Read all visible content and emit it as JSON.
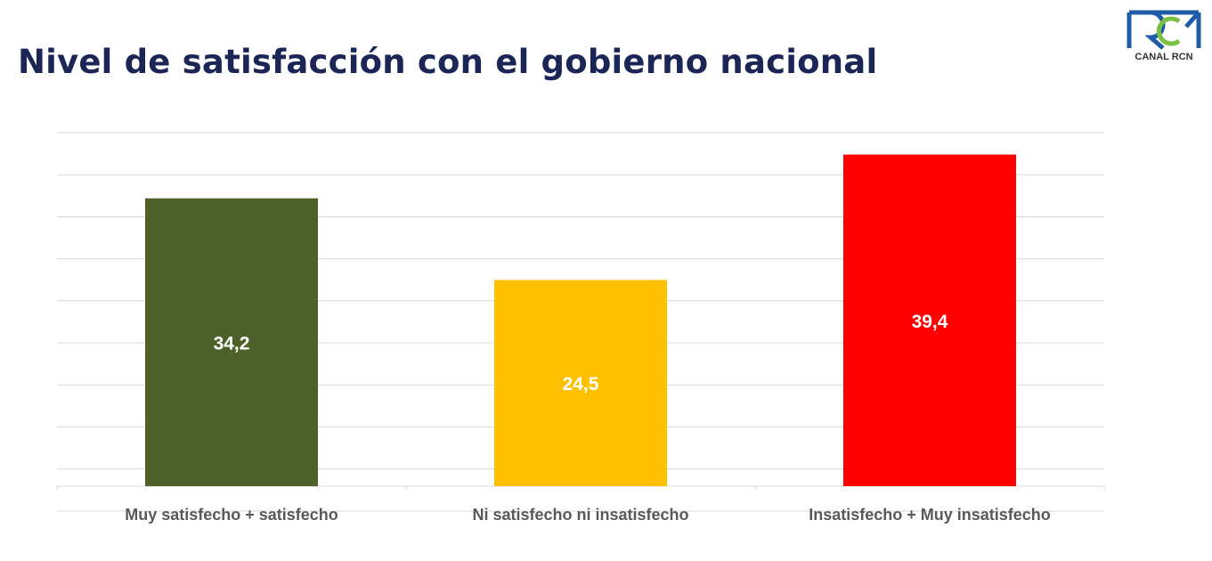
{
  "header": {
    "title": "Nivel de satisfacción con el gobierno nacional"
  },
  "logo": {
    "text": "CANAL RCN",
    "colors": {
      "blue": "#1f5ca8",
      "green": "#7ac143"
    }
  },
  "chart_data": {
    "type": "bar",
    "title": "",
    "xlabel": "",
    "ylabel": "",
    "categories": [
      "Muy satisfecho + satisfecho",
      "Ni satisfecho ni insatisfecho",
      "Insatisfecho + Muy insatisfecho"
    ],
    "values": [
      34.2,
      24.5,
      39.4
    ],
    "data_labels": [
      "34,2",
      "24,5",
      "39,4"
    ],
    "colors": [
      "#4e6129",
      "#ffc000",
      "#ff0000"
    ],
    "ylim": [
      0,
      42
    ],
    "grid": true,
    "y_tick_labels_shown": false,
    "legend": "none"
  }
}
